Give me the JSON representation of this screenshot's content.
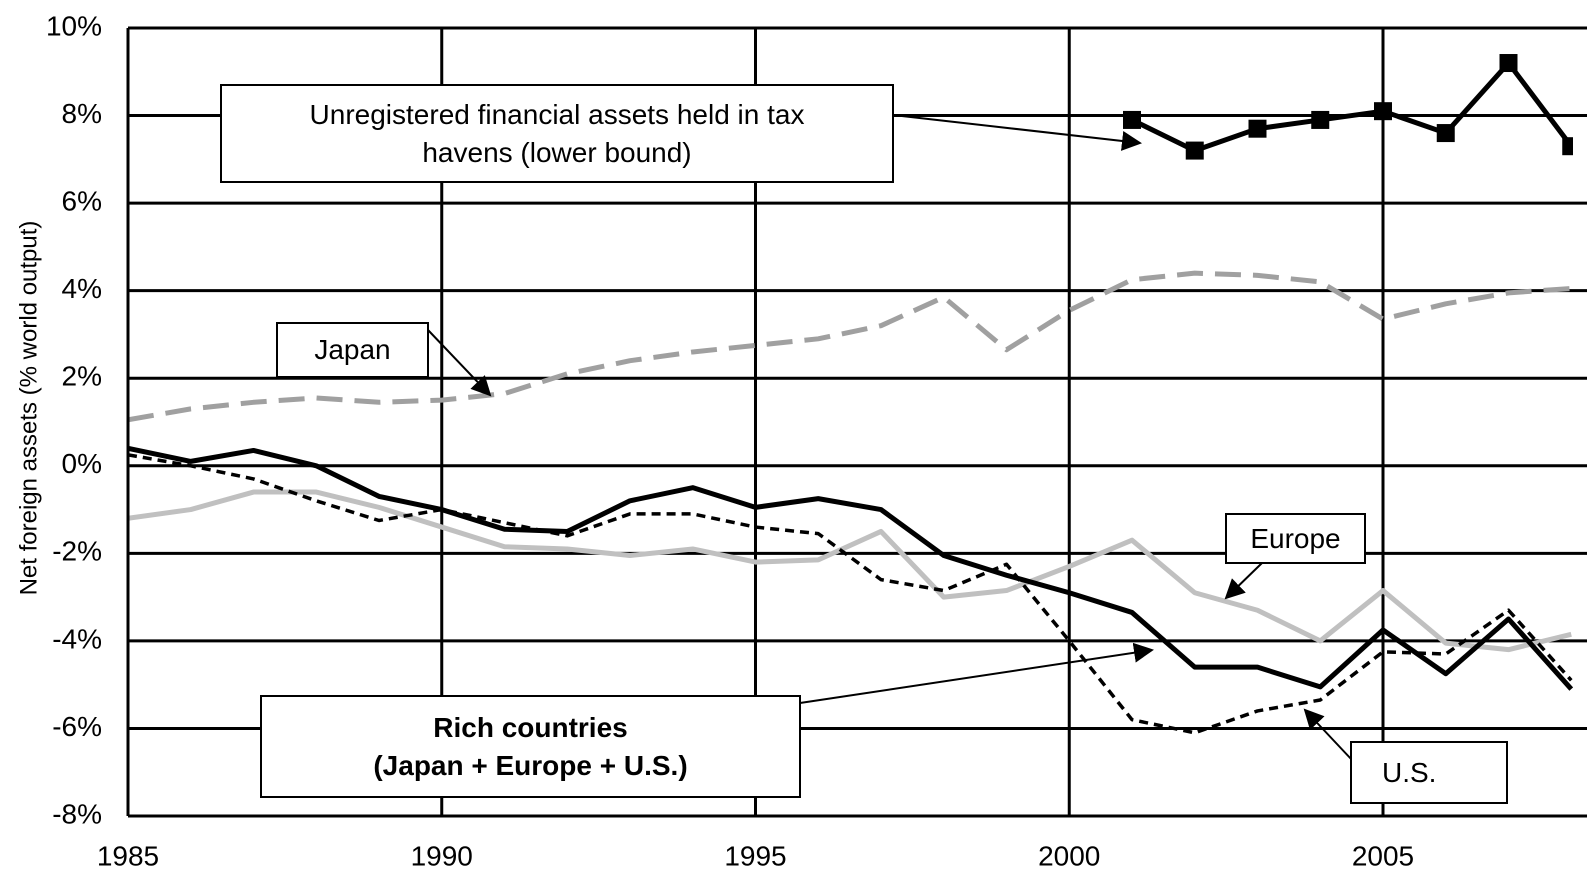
{
  "chart_data": {
    "type": "line",
    "ylabel": "Net foreign assets (% world output)",
    "x": [
      1985,
      1986,
      1987,
      1988,
      1989,
      1990,
      1991,
      1992,
      1993,
      1994,
      1995,
      1996,
      1997,
      1998,
      1999,
      2000,
      2001,
      2002,
      2003,
      2004,
      2005,
      2006,
      2007,
      2008
    ],
    "xlim": [
      1985,
      2008
    ],
    "xticks": [
      1985,
      1990,
      1995,
      2000,
      2005
    ],
    "ylim": [
      -8,
      10
    ],
    "yticks": [
      {
        "value": -8,
        "label": "-8%"
      },
      {
        "value": -6,
        "label": "-6%"
      },
      {
        "value": -4,
        "label": "-4%"
      },
      {
        "value": -2,
        "label": "-2%"
      },
      {
        "value": 0,
        "label": "0%"
      },
      {
        "value": 2,
        "label": "2%"
      },
      {
        "value": 4,
        "label": "4%"
      },
      {
        "value": 6,
        "label": "6%"
      },
      {
        "value": 8,
        "label": "8%"
      },
      {
        "value": 10,
        "label": "10%"
      }
    ],
    "grid": true,
    "series": [
      {
        "name": "Unregistered financial assets held in tax\nhavens (lower bound)",
        "color": "#000000",
        "style": "solid-markers",
        "values": [
          null,
          null,
          null,
          null,
          null,
          null,
          null,
          null,
          null,
          null,
          null,
          null,
          null,
          null,
          null,
          null,
          7.9,
          7.2,
          7.7,
          7.9,
          8.1,
          7.6,
          9.2,
          7.3
        ]
      },
      {
        "name": "Japan",
        "color": "#a0a0a0",
        "style": "dashed",
        "values": [
          1.05,
          1.3,
          1.45,
          1.55,
          1.45,
          1.5,
          1.65,
          2.1,
          2.4,
          2.6,
          2.75,
          2.9,
          3.2,
          3.85,
          2.65,
          3.55,
          4.25,
          4.4,
          4.35,
          4.2,
          3.35,
          3.7,
          3.95,
          4.05
        ]
      },
      {
        "name": "Europe",
        "color": "#c0c0c0",
        "style": "solid",
        "values": [
          -1.2,
          -1.0,
          -0.6,
          -0.6,
          -0.95,
          -1.4,
          -1.85,
          -1.9,
          -2.05,
          -1.9,
          -2.2,
          -2.15,
          -1.5,
          -3.0,
          -2.85,
          -2.3,
          -1.7,
          -2.9,
          -3.3,
          -4.0,
          -2.85,
          -4.05,
          -4.2,
          -3.85
        ]
      },
      {
        "name": "U.S.",
        "color": "#000000",
        "style": "dotted",
        "values": [
          0.25,
          0.0,
          -0.3,
          -0.8,
          -1.25,
          -1.0,
          -1.3,
          -1.6,
          -1.1,
          -1.1,
          -1.4,
          -1.55,
          -2.6,
          -2.85,
          -2.25,
          -4.0,
          -5.8,
          -6.1,
          -5.6,
          -5.35,
          -4.25,
          -4.3,
          -3.3,
          -4.9
        ]
      },
      {
        "name": "Rich countries\n(Japan + Europe + U.S.)",
        "color": "#000000",
        "style": "solid",
        "values": [
          0.4,
          0.1,
          0.35,
          0.0,
          -0.7,
          -1.0,
          -1.45,
          -1.5,
          -0.8,
          -0.5,
          -0.95,
          -0.75,
          -1.0,
          -2.05,
          -2.5,
          -2.9,
          -3.35,
          -4.6,
          -4.6,
          -5.05,
          -3.75,
          -4.75,
          -3.5,
          -5.1
        ]
      }
    ]
  }
}
